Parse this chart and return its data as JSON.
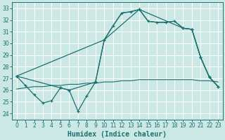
{
  "xlabel": "Humidex (Indice chaleur)",
  "bg_color": "#cce8e4",
  "grid_color": "#ffffff",
  "line_color": "#1a7070",
  "xlim": [
    0,
    23
  ],
  "ylim": [
    23.5,
    33.5
  ],
  "xticks": [
    0,
    1,
    2,
    3,
    4,
    5,
    6,
    7,
    8,
    9,
    10,
    11,
    12,
    13,
    14,
    15,
    16,
    17,
    18,
    19,
    20,
    21,
    22,
    23
  ],
  "yticks": [
    24,
    25,
    26,
    27,
    28,
    29,
    30,
    31,
    32,
    33
  ],
  "series1_x": [
    0,
    1,
    2,
    3,
    4,
    5,
    6,
    7,
    8,
    9,
    10,
    11,
    12,
    13,
    14,
    15,
    16,
    17,
    18,
    19,
    20,
    21,
    22,
    23
  ],
  "series1_y": [
    27.2,
    26.4,
    25.6,
    24.9,
    25.1,
    26.2,
    26.0,
    24.2,
    25.5,
    26.7,
    30.3,
    31.5,
    32.6,
    32.7,
    32.9,
    31.9,
    31.8,
    31.8,
    31.9,
    31.3,
    31.2,
    28.8,
    27.1,
    26.3
  ],
  "series2_x": [
    0,
    10,
    11,
    12,
    13,
    14,
    15,
    16,
    17,
    18,
    19,
    20,
    21,
    22,
    23
  ],
  "series2_y": [
    27.2,
    30.3,
    31.5,
    32.6,
    32.7,
    32.9,
    31.9,
    31.8,
    31.8,
    31.9,
    31.3,
    31.2,
    28.8,
    27.1,
    26.3
  ],
  "series3_x": [
    0,
    5,
    6,
    9,
    10,
    14,
    19,
    20,
    21,
    22,
    23
  ],
  "series3_y": [
    27.2,
    26.2,
    26.0,
    26.7,
    30.3,
    32.9,
    31.3,
    31.2,
    28.8,
    27.1,
    26.3
  ],
  "series4_x": [
    0,
    1,
    2,
    3,
    4,
    5,
    6,
    7,
    8,
    9,
    10,
    11,
    12,
    13,
    14,
    15,
    16,
    17,
    18,
    19,
    20,
    21,
    22,
    23
  ],
  "series4_y": [
    26.1,
    26.2,
    26.3,
    26.3,
    26.4,
    26.4,
    26.5,
    26.5,
    26.6,
    26.6,
    26.7,
    26.7,
    26.8,
    26.8,
    26.9,
    26.9,
    26.9,
    26.9,
    26.9,
    26.9,
    26.9,
    26.8,
    26.8,
    26.7
  ]
}
